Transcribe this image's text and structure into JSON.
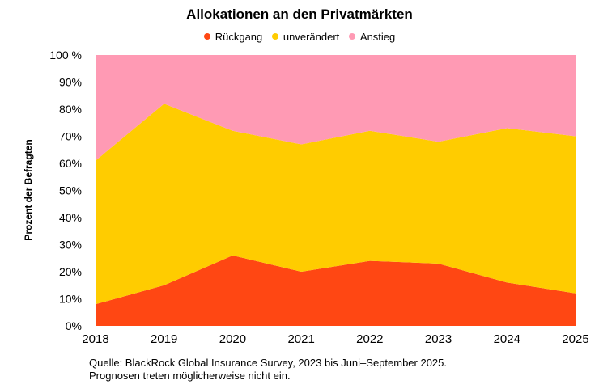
{
  "chart_data": {
    "type": "area",
    "stacked": true,
    "title": "Allokationen an den Privatmärkten",
    "ylabel": "Prozent der Befragten",
    "xlabel": "",
    "ylim": [
      0,
      100
    ],
    "yticks": [
      "0%",
      "10%",
      "20%",
      "30%",
      "40%",
      "50%",
      "60%",
      "70%",
      "80%",
      "90%",
      "100 %"
    ],
    "categories": [
      "2018",
      "2019",
      "2020",
      "2021",
      "2022",
      "2023",
      "2024",
      "2025"
    ],
    "legend_position": "top",
    "grid": false,
    "series": [
      {
        "name": "Rückgang",
        "color": "#FF4713",
        "values": [
          8,
          15,
          26,
          20,
          24,
          23,
          16,
          12
        ]
      },
      {
        "name": "unverändert",
        "color": "#FFCC00",
        "values": [
          53,
          67,
          46,
          47,
          48,
          45,
          57,
          58
        ]
      },
      {
        "name": "Anstieg",
        "color": "#FF9AB4",
        "values": [
          39,
          18,
          28,
          33,
          28,
          32,
          27,
          30
        ]
      }
    ]
  },
  "footnote": {
    "line1": "Quelle: BlackRock Global Insurance Survey, 2023 bis Juni–September 2025.",
    "line2": "Prognosen treten möglicherweise nicht ein."
  }
}
